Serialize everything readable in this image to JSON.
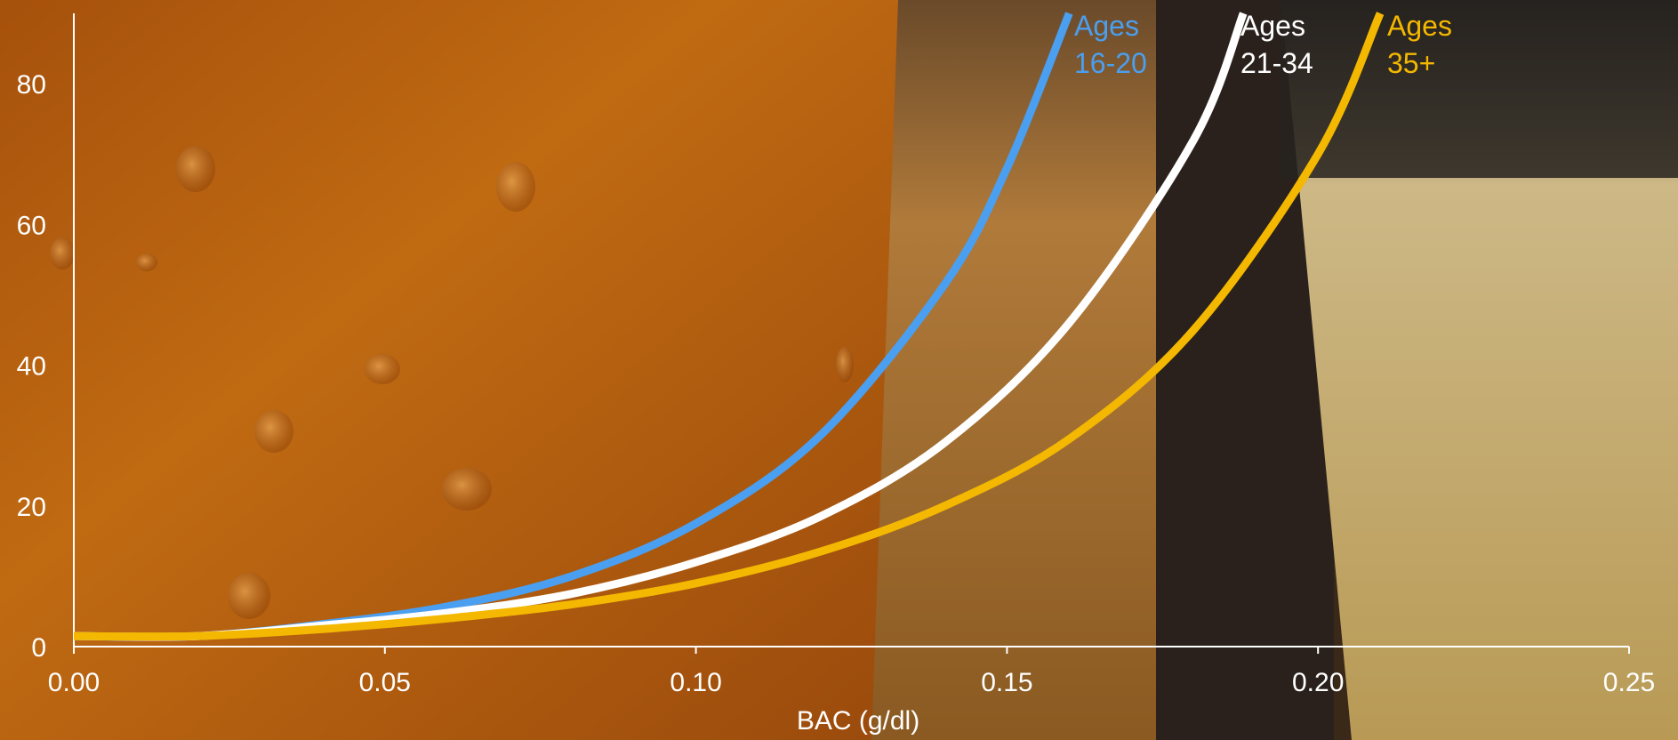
{
  "chart_data": {
    "type": "line",
    "title": "",
    "xlabel": "BAC (g/dl)",
    "ylabel": "",
    "xlim": [
      0,
      0.25
    ],
    "ylim": [
      0,
      90
    ],
    "x_ticks": [
      "0.00",
      "0.05",
      "0.10",
      "0.15",
      "0.20",
      "0.25"
    ],
    "x_tick_values": [
      0,
      0.05,
      0.1,
      0.15,
      0.2,
      0.25
    ],
    "y_ticks": [
      "0",
      "20",
      "40",
      "60",
      "80"
    ],
    "y_tick_values": [
      0,
      20,
      40,
      60,
      80
    ],
    "grid": false,
    "legend": "series labels at top end of each curve",
    "series": [
      {
        "name": "Ages 16-20",
        "label_line1": "Ages",
        "label_line2": "16-20",
        "color": "#4a9ff0",
        "x": [
          0,
          0.02,
          0.04,
          0.06,
          0.08,
          0.1,
          0.12,
          0.14,
          0.15,
          0.16
        ],
        "y": [
          1.5,
          1.5,
          3.2,
          5.7,
          10.0,
          17.5,
          30.0,
          51.5,
          68.0,
          90.0
        ]
      },
      {
        "name": "Ages 21-34",
        "label_line1": "Ages",
        "label_line2": "21-34",
        "color": "#ffffff",
        "x": [
          0,
          0.02,
          0.04,
          0.06,
          0.08,
          0.1,
          0.12,
          0.14,
          0.16,
          0.18,
          0.188
        ],
        "y": [
          1.5,
          1.5,
          3.0,
          4.8,
          7.5,
          12.0,
          18.5,
          29.0,
          46.0,
          72.0,
          90.0
        ]
      },
      {
        "name": "Ages 35+",
        "label_line1": "Ages",
        "label_line2": "35+",
        "color": "#f4b800",
        "x": [
          0,
          0.02,
          0.04,
          0.06,
          0.08,
          0.1,
          0.12,
          0.14,
          0.16,
          0.18,
          0.2,
          0.21
        ],
        "y": [
          1.5,
          1.5,
          2.5,
          4.0,
          6.0,
          9.0,
          13.5,
          20.0,
          29.5,
          45.0,
          70.0,
          90.0
        ]
      }
    ]
  },
  "background": {
    "description_icon": "beer-glasses-photo",
    "colors": [
      "#b85d10",
      "#c97a1c",
      "#3b2a1a",
      "#c9b070"
    ]
  }
}
